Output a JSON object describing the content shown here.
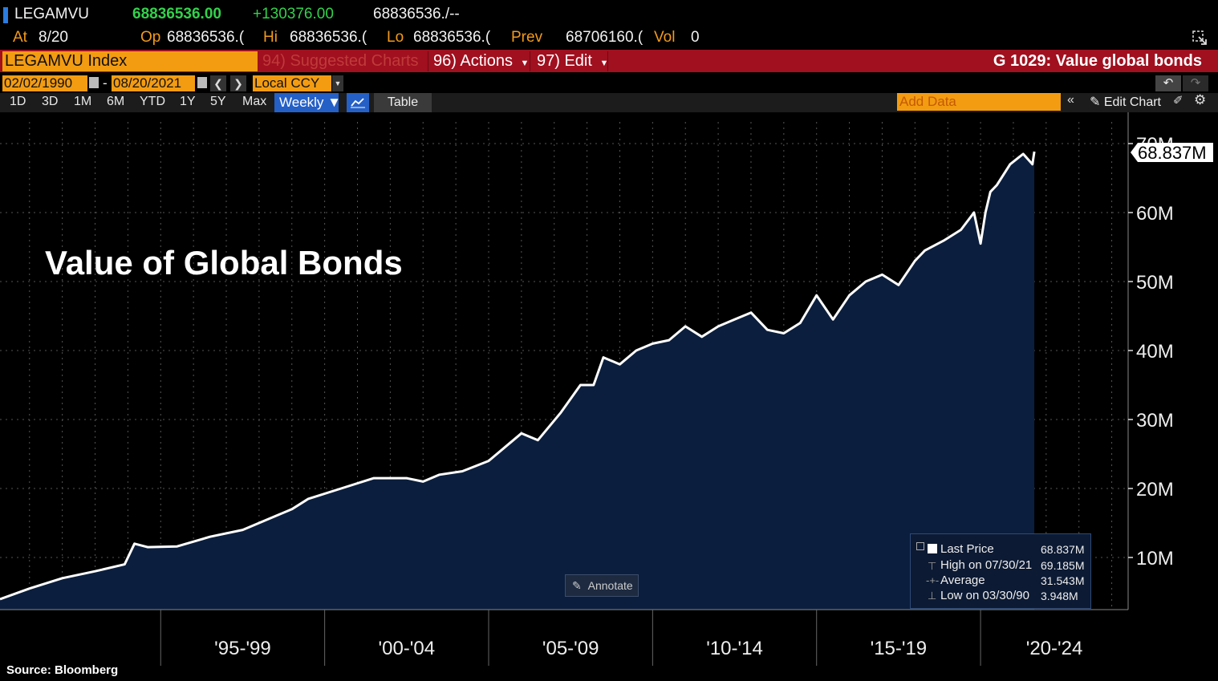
{
  "quote": {
    "ticker": "LEGAMVU",
    "last": "68836536.00",
    "change": "+130376.00",
    "bidask": "68836536./--",
    "at_label": "At",
    "at_date": "8/20",
    "op_label": "Op",
    "op_value": "68836536.(",
    "hi_label": "Hi",
    "hi_value": "68836536.(",
    "lo_label": "Lo",
    "lo_value": "68836536.(",
    "prev_label": "Prev",
    "prev_value": "68706160.(",
    "vol_label": "Vol",
    "vol_value": "0"
  },
  "toolbar": {
    "security": "LEGAMVU Index",
    "suggested": "94) Suggested Charts",
    "actions": "96) Actions",
    "edit": "97) Edit",
    "function_title": "G 1029: Value global bonds"
  },
  "range": {
    "start": "02/02/1990",
    "dash": "-",
    "end": "08/20/2021",
    "currency": "Local CCY"
  },
  "periods": [
    "1D",
    "3D",
    "1M",
    "6M",
    "YTD",
    "1Y",
    "5Y",
    "Max"
  ],
  "frequency": "Weekly ▼",
  "table_label": "Table",
  "add_data_placeholder": "Add Data",
  "edit_chart": "Edit Chart",
  "annotate": "Annotate",
  "source": "Source: Bloomberg",
  "colors": {
    "fill": "#0b1e3d",
    "line": "#ffffff",
    "orange": "#f39c12",
    "red": "#a0101f"
  },
  "legend": {
    "last_label": "Last Price",
    "last_value": "68.837M",
    "high_label": "High on 07/30/21",
    "high_value": "69.185M",
    "avg_label": "Average",
    "avg_value": "31.543M",
    "low_label": "Low on 03/30/90",
    "low_value": "3.948M"
  },
  "chart_data": {
    "type": "area",
    "title": "Value of Global Bonds",
    "last_label": "68.837M",
    "ylim": [
      0,
      70
    ],
    "y_ticks": [
      10,
      20,
      30,
      40,
      50,
      60,
      70
    ],
    "y_tick_labels": [
      "10M",
      "20M",
      "30M",
      "40M",
      "50M",
      "60M",
      "70M"
    ],
    "x_ticks": [
      "'95-'99",
      "'00-'04",
      "'05-'09",
      "'10-'14",
      "'15-'19",
      "'20-'24"
    ],
    "x_range": [
      1990.1,
      2024.5
    ],
    "grid": true,
    "series": [
      {
        "x": [
          1990.1,
          1991,
          1992,
          1993,
          1993.9,
          1994.2,
          1994.6,
          1995.5,
          1996.5,
          1997.5,
          1998.5,
          1999,
          1999.5,
          2000.5,
          2001.5,
          2002.5,
          2003,
          2003.5,
          2004.2,
          2005,
          2006,
          2006.5,
          2007.2,
          2007.8,
          2008.2,
          2008.5,
          2009,
          2009.5,
          2010,
          2010.5,
          2011,
          2011.5,
          2012,
          2012.5,
          2013,
          2013.5,
          2014,
          2014.5,
          2015,
          2015.5,
          2016,
          2016.5,
          2017,
          2017.5,
          2018,
          2018.3,
          2018.9,
          2019.4,
          2019.8,
          2020.0,
          2020.15,
          2020.3,
          2020.5,
          2020.9,
          2021.3,
          2021.58,
          2021.64
        ],
        "y": [
          3.95,
          5.5,
          7.0,
          8.0,
          9.0,
          12.0,
          11.5,
          11.6,
          13.0,
          14.0,
          16.0,
          17.0,
          18.5,
          20.0,
          21.5,
          21.5,
          21.0,
          22.0,
          22.5,
          24.0,
          28.0,
          27.0,
          31.0,
          35.0,
          35.0,
          39.0,
          38.0,
          40.0,
          41.0,
          41.5,
          43.5,
          42.0,
          43.5,
          44.5,
          45.5,
          43.0,
          42.5,
          44.0,
          48.0,
          44.5,
          48.0,
          50.0,
          51.0,
          49.5,
          53.0,
          54.5,
          56.0,
          57.5,
          60.0,
          55.5,
          60.0,
          63.0,
          64.0,
          67.0,
          68.5,
          67.0,
          68.837
        ]
      }
    ]
  }
}
